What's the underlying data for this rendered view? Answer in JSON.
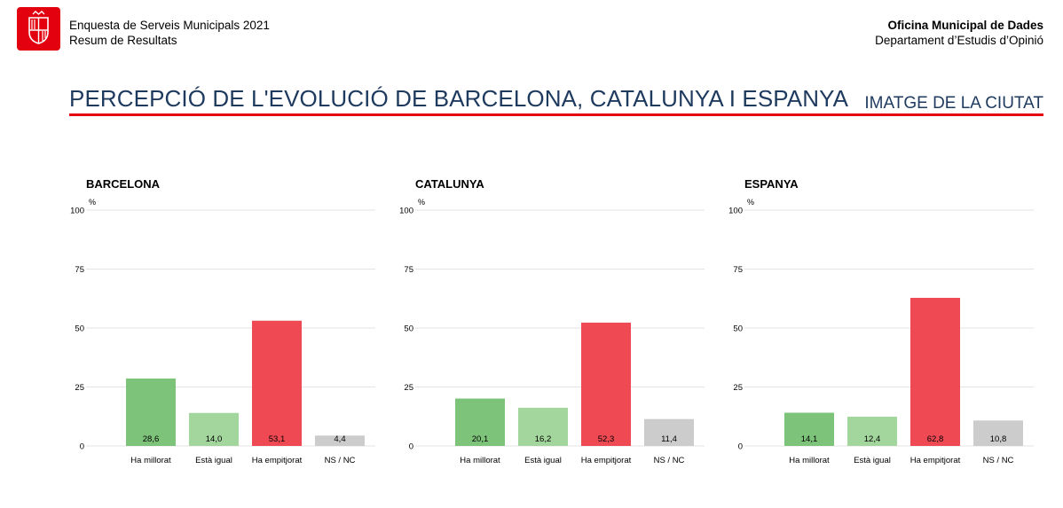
{
  "header": {
    "survey_title": "Enquesta de Serveis Municipals 2021",
    "survey_subtitle": "Resum de Resultats",
    "office": "Oficina Municipal de Dades",
    "department": "Departament d’Estudis d’Opinió"
  },
  "page_title": "PERCEPCIÓ DE L'EVOLUCIÓ DE BARCELONA, CATALUNYA I ESPANYA",
  "section_title": "IMATGE DE LA CIUTAT",
  "colors": {
    "brand_red": "#e3000f",
    "title_blue": "#1e3a5f",
    "bar_colors": [
      "#7dc47a",
      "#a3d69d",
      "#ef4a54",
      "#cccccc"
    ]
  },
  "chart_data": [
    {
      "type": "bar",
      "title": "BARCELONA",
      "ylabel": "%",
      "ylim": [
        0,
        100
      ],
      "yticks": [
        "0",
        "25",
        "50",
        "75",
        "100"
      ],
      "categories": [
        "Ha millorat",
        "Està igual",
        "Ha empitjorat",
        "NS / NC"
      ],
      "values": [
        28.6,
        14.0,
        53.1,
        4.4
      ],
      "value_labels": [
        "28,6",
        "14,0",
        "53,1",
        "4,4"
      ],
      "grid": true
    },
    {
      "type": "bar",
      "title": "CATALUNYA",
      "ylabel": "%",
      "ylim": [
        0,
        100
      ],
      "yticks": [
        "0",
        "25",
        "50",
        "75",
        "100"
      ],
      "categories": [
        "Ha millorat",
        "Està igual",
        "Ha empitjorat",
        "NS / NC"
      ],
      "values": [
        20.1,
        16.2,
        52.3,
        11.4
      ],
      "value_labels": [
        "20,1",
        "16,2",
        "52,3",
        "11,4"
      ],
      "grid": true
    },
    {
      "type": "bar",
      "title": "ESPANYA",
      "ylabel": "%",
      "ylim": [
        0,
        100
      ],
      "yticks": [
        "0",
        "25",
        "50",
        "75",
        "100"
      ],
      "categories": [
        "Ha millorat",
        "Està igual",
        "Ha empitjorat",
        "NS / NC"
      ],
      "values": [
        14.1,
        12.4,
        62.8,
        10.8
      ],
      "value_labels": [
        "14,1",
        "12,4",
        "62,8",
        "10,8"
      ],
      "grid": true
    }
  ]
}
